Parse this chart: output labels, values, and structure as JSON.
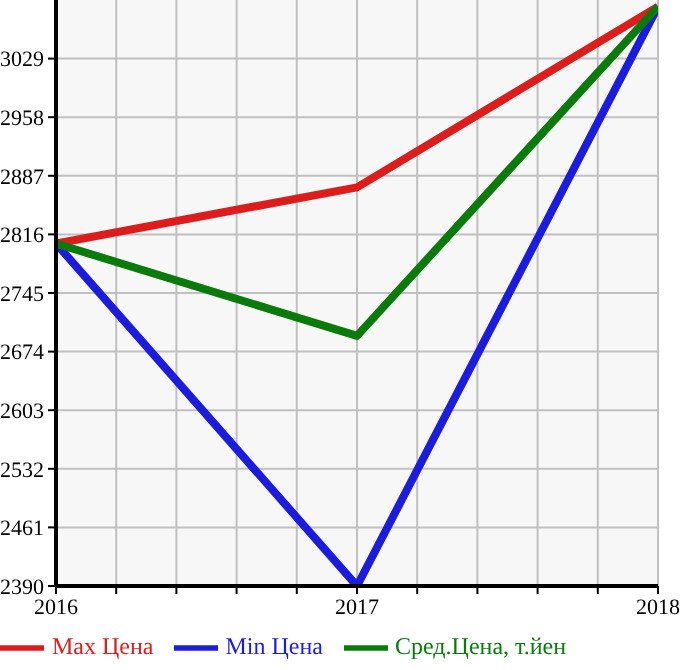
{
  "chart_data": {
    "type": "line",
    "x": [
      2016,
      2017,
      2018
    ],
    "series": [
      {
        "name": "Max Цена",
        "color": "#dd1c1c",
        "values": [
          2805,
          2873,
          3092
        ]
      },
      {
        "name": "Min Цена",
        "color": "#1c1cdd",
        "values": [
          2805,
          2390,
          3092
        ]
      },
      {
        "name": "Сред.Цена, т.йен",
        "color": "#0a7a0a",
        "values": [
          2805,
          2693,
          3092
        ]
      }
    ],
    "xlim": [
      2016,
      2018
    ],
    "xticks": [
      2016,
      {
        "value": 2016.2,
        "label": null
      },
      {
        "value": 2016.4,
        "label": null
      },
      {
        "value": 2016.6,
        "label": null
      },
      {
        "value": 2016.8,
        "label": null
      },
      2017,
      {
        "value": 2017.2,
        "label": null
      },
      {
        "value": 2017.4,
        "label": null
      },
      {
        "value": 2017.6,
        "label": null
      },
      {
        "value": 2017.8,
        "label": null
      },
      2018
    ],
    "ylim": [
      2390,
      3100
    ],
    "yticks": [
      2390,
      2461,
      2532,
      2603,
      2674,
      2745,
      2816,
      2887,
      2958,
      3029
    ],
    "grid": true,
    "legend": "bottom",
    "marker": "none",
    "line_style": "solid"
  }
}
